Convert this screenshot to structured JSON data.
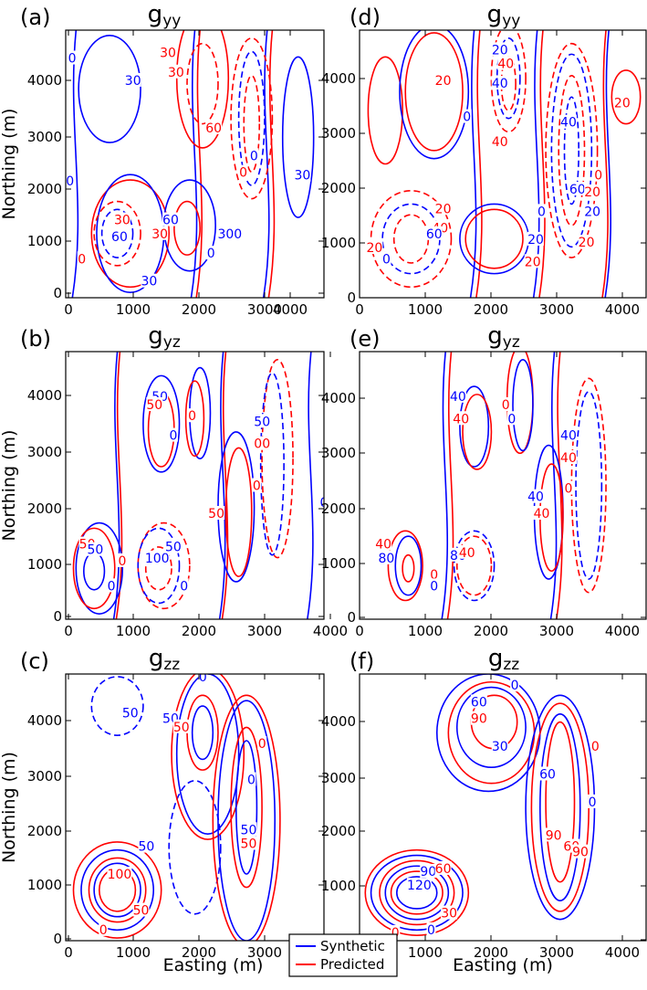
{
  "figure": {
    "legend": {
      "entries": [
        {
          "name": "Synthetic",
          "color": "#0000ff"
        },
        {
          "name": "Predicted",
          "color": "#ff0000"
        }
      ]
    },
    "axis_labels": {
      "x": "Easting (m)",
      "y": "Northing (m)"
    }
  },
  "chart_data": [
    {
      "type": "contour",
      "panel_label": "(a)",
      "title_main": "g",
      "title_sub": "yy",
      "xlabel": "",
      "ylabel": "Northing (m)",
      "xticks": [
        "0",
        "1000",
        "2000",
        "3000",
        "4000"
      ],
      "yticks": [
        "0",
        "1000",
        "2000",
        "3000",
        "4000"
      ],
      "xlim": [
        0,
        4800
      ],
      "ylim": [
        0,
        4800
      ],
      "contour_labels": [
        {
          "text": "0",
          "color": "#0000ff",
          "x": 120,
          "y": 4300
        },
        {
          "text": "30",
          "color": "#0000ff",
          "x": 1250,
          "y": 3900
        },
        {
          "text": "30",
          "color": "#ff0000",
          "x": 1900,
          "y": 4400
        },
        {
          "text": "30",
          "color": "#ff0000",
          "x": 2050,
          "y": 4050
        },
        {
          "text": "0",
          "color": "#0000ff",
          "x": 80,
          "y": 2100
        },
        {
          "text": "60",
          "color": "#ff0000",
          "x": 2750,
          "y": 3050
        },
        {
          "text": "0",
          "color": "#ff0000",
          "x": 3300,
          "y": 2250
        },
        {
          "text": "0",
          "color": "#0000ff",
          "x": 3500,
          "y": 2550
        },
        {
          "text": "30",
          "color": "#0000ff",
          "x": 4400,
          "y": 2200
        },
        {
          "text": "30",
          "color": "#ff0000",
          "x": 1050,
          "y": 1400
        },
        {
          "text": "60",
          "color": "#0000ff",
          "x": 1000,
          "y": 1100
        },
        {
          "text": "60",
          "color": "#0000ff",
          "x": 1950,
          "y": 1400
        },
        {
          "text": "30",
          "color": "#ff0000",
          "x": 1750,
          "y": 1150
        },
        {
          "text": "300",
          "color": "#0000ff",
          "x": 3050,
          "y": 1150
        },
        {
          "text": "0",
          "color": "#0000ff",
          "x": 2700,
          "y": 800
        },
        {
          "text": "0",
          "color": "#ff0000",
          "x": 300,
          "y": 700
        },
        {
          "text": "30",
          "color": "#0000ff",
          "x": 1550,
          "y": 300
        }
      ]
    },
    {
      "type": "contour",
      "panel_label": "(d)",
      "title_main": "g",
      "title_sub": "yy",
      "xlabel": "",
      "ylabel": "",
      "xticks": [
        "0",
        "1000",
        "2000",
        "3000",
        "4000"
      ],
      "yticks": [
        "0",
        "1000",
        "2000",
        "3000",
        "4000"
      ],
      "xlim": [
        0,
        4800
      ],
      "ylim": [
        0,
        4800
      ],
      "contour_labels": [
        {
          "text": "20",
          "color": "#0000ff",
          "x": 2350,
          "y": 4450
        },
        {
          "text": "40",
          "color": "#ff0000",
          "x": 2450,
          "y": 4200
        },
        {
          "text": "40",
          "color": "#0000ff",
          "x": 2350,
          "y": 3850
        },
        {
          "text": "20",
          "color": "#ff0000",
          "x": 1400,
          "y": 3900
        },
        {
          "text": "0",
          "color": "#0000ff",
          "x": 1800,
          "y": 3250
        },
        {
          "text": "40",
          "color": "#ff0000",
          "x": 2350,
          "y": 2800
        },
        {
          "text": "40",
          "color": "#0000ff",
          "x": 3500,
          "y": 3150
        },
        {
          "text": "20",
          "color": "#ff0000",
          "x": 4400,
          "y": 3500
        },
        {
          "text": "0",
          "color": "#ff0000",
          "x": 4000,
          "y": 2200
        },
        {
          "text": "60",
          "color": "#0000ff",
          "x": 3650,
          "y": 1950
        },
        {
          "text": "20",
          "color": "#ff0000",
          "x": 3900,
          "y": 1900
        },
        {
          "text": "20",
          "color": "#0000ff",
          "x": 3900,
          "y": 1550
        },
        {
          "text": "20",
          "color": "#ff0000",
          "x": 1400,
          "y": 1600
        },
        {
          "text": "40",
          "color": "#ff0000",
          "x": 1350,
          "y": 1250
        },
        {
          "text": "60",
          "color": "#0000ff",
          "x": 1250,
          "y": 1150
        },
        {
          "text": "0",
          "color": "#0000ff",
          "x": 3050,
          "y": 1550
        },
        {
          "text": "20",
          "color": "#0000ff",
          "x": 2950,
          "y": 1050
        },
        {
          "text": "20",
          "color": "#ff0000",
          "x": 2900,
          "y": 650
        },
        {
          "text": "20",
          "color": "#ff0000",
          "x": 3800,
          "y": 1000
        },
        {
          "text": "20",
          "color": "#ff0000",
          "x": 250,
          "y": 900
        },
        {
          "text": "0",
          "color": "#0000ff",
          "x": 450,
          "y": 700
        }
      ]
    },
    {
      "type": "contour",
      "panel_label": "(b)",
      "title_main": "g",
      "title_sub": "yz",
      "xlabel": "",
      "ylabel": "Northing (m)",
      "xticks": [
        "0",
        "1000",
        "2000",
        "3000",
        "4000"
      ],
      "yticks": [
        "0",
        "1000",
        "2000",
        "3000",
        "4000"
      ],
      "xlim": [
        0,
        4800
      ],
      "ylim": [
        0,
        4800
      ],
      "contour_labels": [
        {
          "text": "50",
          "color": "#0000ff",
          "x": 1750,
          "y": 4000
        },
        {
          "text": "50",
          "color": "#ff0000",
          "x": 1650,
          "y": 3850
        },
        {
          "text": "0",
          "color": "#ff0000",
          "x": 2350,
          "y": 3650
        },
        {
          "text": "0",
          "color": "#0000ff",
          "x": 2000,
          "y": 3300
        },
        {
          "text": "50",
          "color": "#0000ff",
          "x": 3650,
          "y": 3550
        },
        {
          "text": "00",
          "color": "#ff0000",
          "x": 3650,
          "y": 3150
        },
        {
          "text": "0",
          "color": "#ff0000",
          "x": 3550,
          "y": 2400
        },
        {
          "text": "50",
          "color": "#ff0000",
          "x": 2800,
          "y": 1900
        },
        {
          "text": "0",
          "color": "#0000ff",
          "x": 4800,
          "y": 2100
        },
        {
          "text": "50",
          "color": "#ff0000",
          "x": 400,
          "y": 1350
        },
        {
          "text": "50",
          "color": "#0000ff",
          "x": 550,
          "y": 1250
        },
        {
          "text": "0",
          "color": "#ff0000",
          "x": 1050,
          "y": 1050
        },
        {
          "text": "100",
          "color": "#0000ff",
          "x": 1700,
          "y": 1100
        },
        {
          "text": "50",
          "color": "#0000ff",
          "x": 2000,
          "y": 1300
        },
        {
          "text": "0",
          "color": "#0000ff",
          "x": 850,
          "y": 600
        },
        {
          "text": "0",
          "color": "#0000ff",
          "x": 2200,
          "y": 600
        }
      ]
    },
    {
      "type": "contour",
      "panel_label": "(e)",
      "title_main": "g",
      "title_sub": "yz",
      "xlabel": "",
      "ylabel": "",
      "xticks": [
        "0",
        "1000",
        "2000",
        "3000",
        "4000"
      ],
      "yticks": [
        "0",
        "1000",
        "2000",
        "3000",
        "4000"
      ],
      "xlim": [
        0,
        4800
      ],
      "ylim": [
        0,
        4800
      ],
      "contour_labels": [
        {
          "text": "40",
          "color": "#0000ff",
          "x": 1650,
          "y": 4000
        },
        {
          "text": "40",
          "color": "#ff0000",
          "x": 1700,
          "y": 3600
        },
        {
          "text": "0",
          "color": "#ff0000",
          "x": 2450,
          "y": 3850
        },
        {
          "text": "0",
          "color": "#0000ff",
          "x": 2550,
          "y": 3600
        },
        {
          "text": "40",
          "color": "#0000ff",
          "x": 3500,
          "y": 3300
        },
        {
          "text": "40",
          "color": "#ff0000",
          "x": 3500,
          "y": 2900
        },
        {
          "text": "0",
          "color": "#ff0000",
          "x": 3500,
          "y": 2350
        },
        {
          "text": "40",
          "color": "#0000ff",
          "x": 2950,
          "y": 2200
        },
        {
          "text": "40",
          "color": "#ff0000",
          "x": 3050,
          "y": 1900
        },
        {
          "text": "40",
          "color": "#ff0000",
          "x": 400,
          "y": 1350
        },
        {
          "text": "80",
          "color": "#0000ff",
          "x": 450,
          "y": 1100
        },
        {
          "text": "80",
          "color": "#0000ff",
          "x": 1650,
          "y": 1150
        },
        {
          "text": "40",
          "color": "#ff0000",
          "x": 1800,
          "y": 1200
        },
        {
          "text": "0",
          "color": "#ff0000",
          "x": 1250,
          "y": 800
        },
        {
          "text": "0",
          "color": "#0000ff",
          "x": 1250,
          "y": 600
        }
      ]
    },
    {
      "type": "contour",
      "panel_label": "(c)",
      "title_main": "g",
      "title_sub": "zz",
      "xlabel": "Easting (m)",
      "ylabel": "Northing (m)",
      "xticks": [
        "0",
        "1000",
        "2000",
        "3000",
        "40"
      ],
      "yticks": [
        "0",
        "1000",
        "2000",
        "3000",
        "4000"
      ],
      "xlim": [
        0,
        4800
      ],
      "ylim": [
        0,
        4800
      ],
      "contour_labels": [
        {
          "text": "50",
          "color": "#0000ff",
          "x": 1200,
          "y": 4100
        },
        {
          "text": "50",
          "color": "#0000ff",
          "x": 1950,
          "y": 4000
        },
        {
          "text": "50",
          "color": "#ff0000",
          "x": 2150,
          "y": 3850
        },
        {
          "text": "0",
          "color": "#0000ff",
          "x": 2550,
          "y": 4750
        },
        {
          "text": "0",
          "color": "#ff0000",
          "x": 3650,
          "y": 3550
        },
        {
          "text": "0",
          "color": "#0000ff",
          "x": 3450,
          "y": 2900
        },
        {
          "text": "50",
          "color": "#0000ff",
          "x": 3400,
          "y": 2000
        },
        {
          "text": "50",
          "color": "#ff0000",
          "x": 3400,
          "y": 1750
        },
        {
          "text": "50",
          "color": "#0000ff",
          "x": 1500,
          "y": 1700
        },
        {
          "text": "100",
          "color": "#ff0000",
          "x": 1000,
          "y": 1200
        },
        {
          "text": "50",
          "color": "#ff0000",
          "x": 1400,
          "y": 550
        },
        {
          "text": "0",
          "color": "#ff0000",
          "x": 700,
          "y": 200
        }
      ]
    },
    {
      "type": "contour",
      "panel_label": "(f)",
      "title_main": "g",
      "title_sub": "zz",
      "xlabel": "Easting (m)",
      "ylabel": "",
      "xticks": [
        "0",
        "1000",
        "2000",
        "3000",
        "4000"
      ],
      "yticks": [
        "0",
        "1000",
        "2000",
        "3000",
        "4000"
      ],
      "xlim": [
        0,
        4800
      ],
      "ylim": [
        0,
        4800
      ],
      "contour_labels": [
        {
          "text": "0",
          "color": "#0000ff",
          "x": 2600,
          "y": 4600
        },
        {
          "text": "60",
          "color": "#0000ff",
          "x": 2000,
          "y": 4300
        },
        {
          "text": "90",
          "color": "#ff0000",
          "x": 2000,
          "y": 4000
        },
        {
          "text": "30",
          "color": "#0000ff",
          "x": 2350,
          "y": 3500
        },
        {
          "text": "0",
          "color": "#ff0000",
          "x": 3950,
          "y": 3500
        },
        {
          "text": "60",
          "color": "#0000ff",
          "x": 3150,
          "y": 3000
        },
        {
          "text": "0",
          "color": "#0000ff",
          "x": 3900,
          "y": 2500
        },
        {
          "text": "90",
          "color": "#ff0000",
          "x": 3250,
          "y": 1900
        },
        {
          "text": "60",
          "color": "#ff0000",
          "x": 3550,
          "y": 1700
        },
        {
          "text": "90",
          "color": "#ff0000",
          "x": 3700,
          "y": 1600
        },
        {
          "text": "90",
          "color": "#0000ff",
          "x": 1150,
          "y": 1250
        },
        {
          "text": "60",
          "color": "#ff0000",
          "x": 1400,
          "y": 1300
        },
        {
          "text": "120",
          "color": "#0000ff",
          "x": 1000,
          "y": 1000
        },
        {
          "text": "30",
          "color": "#ff0000",
          "x": 1500,
          "y": 500
        },
        {
          "text": "0",
          "color": "#0000ff",
          "x": 1200,
          "y": 200
        },
        {
          "text": "0",
          "color": "#ff0000",
          "x": 600,
          "y": 150
        }
      ]
    }
  ]
}
